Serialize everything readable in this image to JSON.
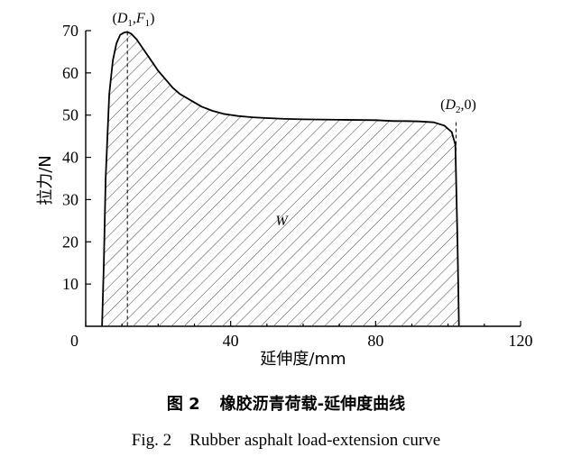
{
  "chart_data": {
    "type": "area",
    "title": "",
    "xlabel": "延伸度/mm",
    "ylabel": "拉力/N",
    "xlim": [
      0,
      120
    ],
    "ylim": [
      0,
      70
    ],
    "x_ticks": [
      0,
      40,
      80,
      120
    ],
    "y_ticks": [
      10,
      20,
      30,
      40,
      50,
      60,
      70
    ],
    "x_tick_labels": [
      "0",
      "40",
      "80",
      "120"
    ],
    "y_tick_labels": [
      "10",
      "20",
      "30",
      "40",
      "50",
      "60",
      "70"
    ],
    "grid": false,
    "fill": "hatched",
    "area_label": "W",
    "series": [
      {
        "x": [
          4.5,
          5.0,
          5.5,
          6.5,
          7.5,
          8.5,
          9.5,
          10.5,
          11.5,
          12.5,
          14,
          16,
          18,
          20,
          22,
          24,
          26,
          28,
          30,
          32,
          35,
          38,
          42,
          46,
          50,
          55,
          60,
          70,
          80,
          85,
          88,
          92,
          96,
          99,
          101,
          102,
          102.6,
          103
        ],
        "y": [
          0,
          15,
          35,
          55,
          63,
          67,
          69,
          69.5,
          69.7,
          69.3,
          68,
          65.5,
          63,
          60.5,
          58.5,
          56.5,
          55,
          54,
          53,
          52,
          51,
          50.3,
          49.8,
          49.5,
          49.3,
          49.1,
          49,
          48.9,
          48.8,
          48.6,
          48.6,
          48.5,
          48.3,
          47.5,
          46,
          43,
          20,
          0
        ]
      }
    ],
    "annotations": [
      {
        "label_parts": [
          "(",
          "D",
          "1",
          ",",
          "F",
          "1",
          ")"
        ],
        "x": 11.5,
        "y": 69.7
      },
      {
        "label_parts": [
          "(",
          "D",
          "2",
          ",0)"
        ],
        "x": 102.2,
        "y": 0
      }
    ]
  },
  "caption": {
    "zh_number": "图 2",
    "zh_title": "橡胶沥青荷载-延伸度曲线",
    "en_number": "Fig. 2",
    "en_title": "Rubber asphalt load-extension curve"
  }
}
